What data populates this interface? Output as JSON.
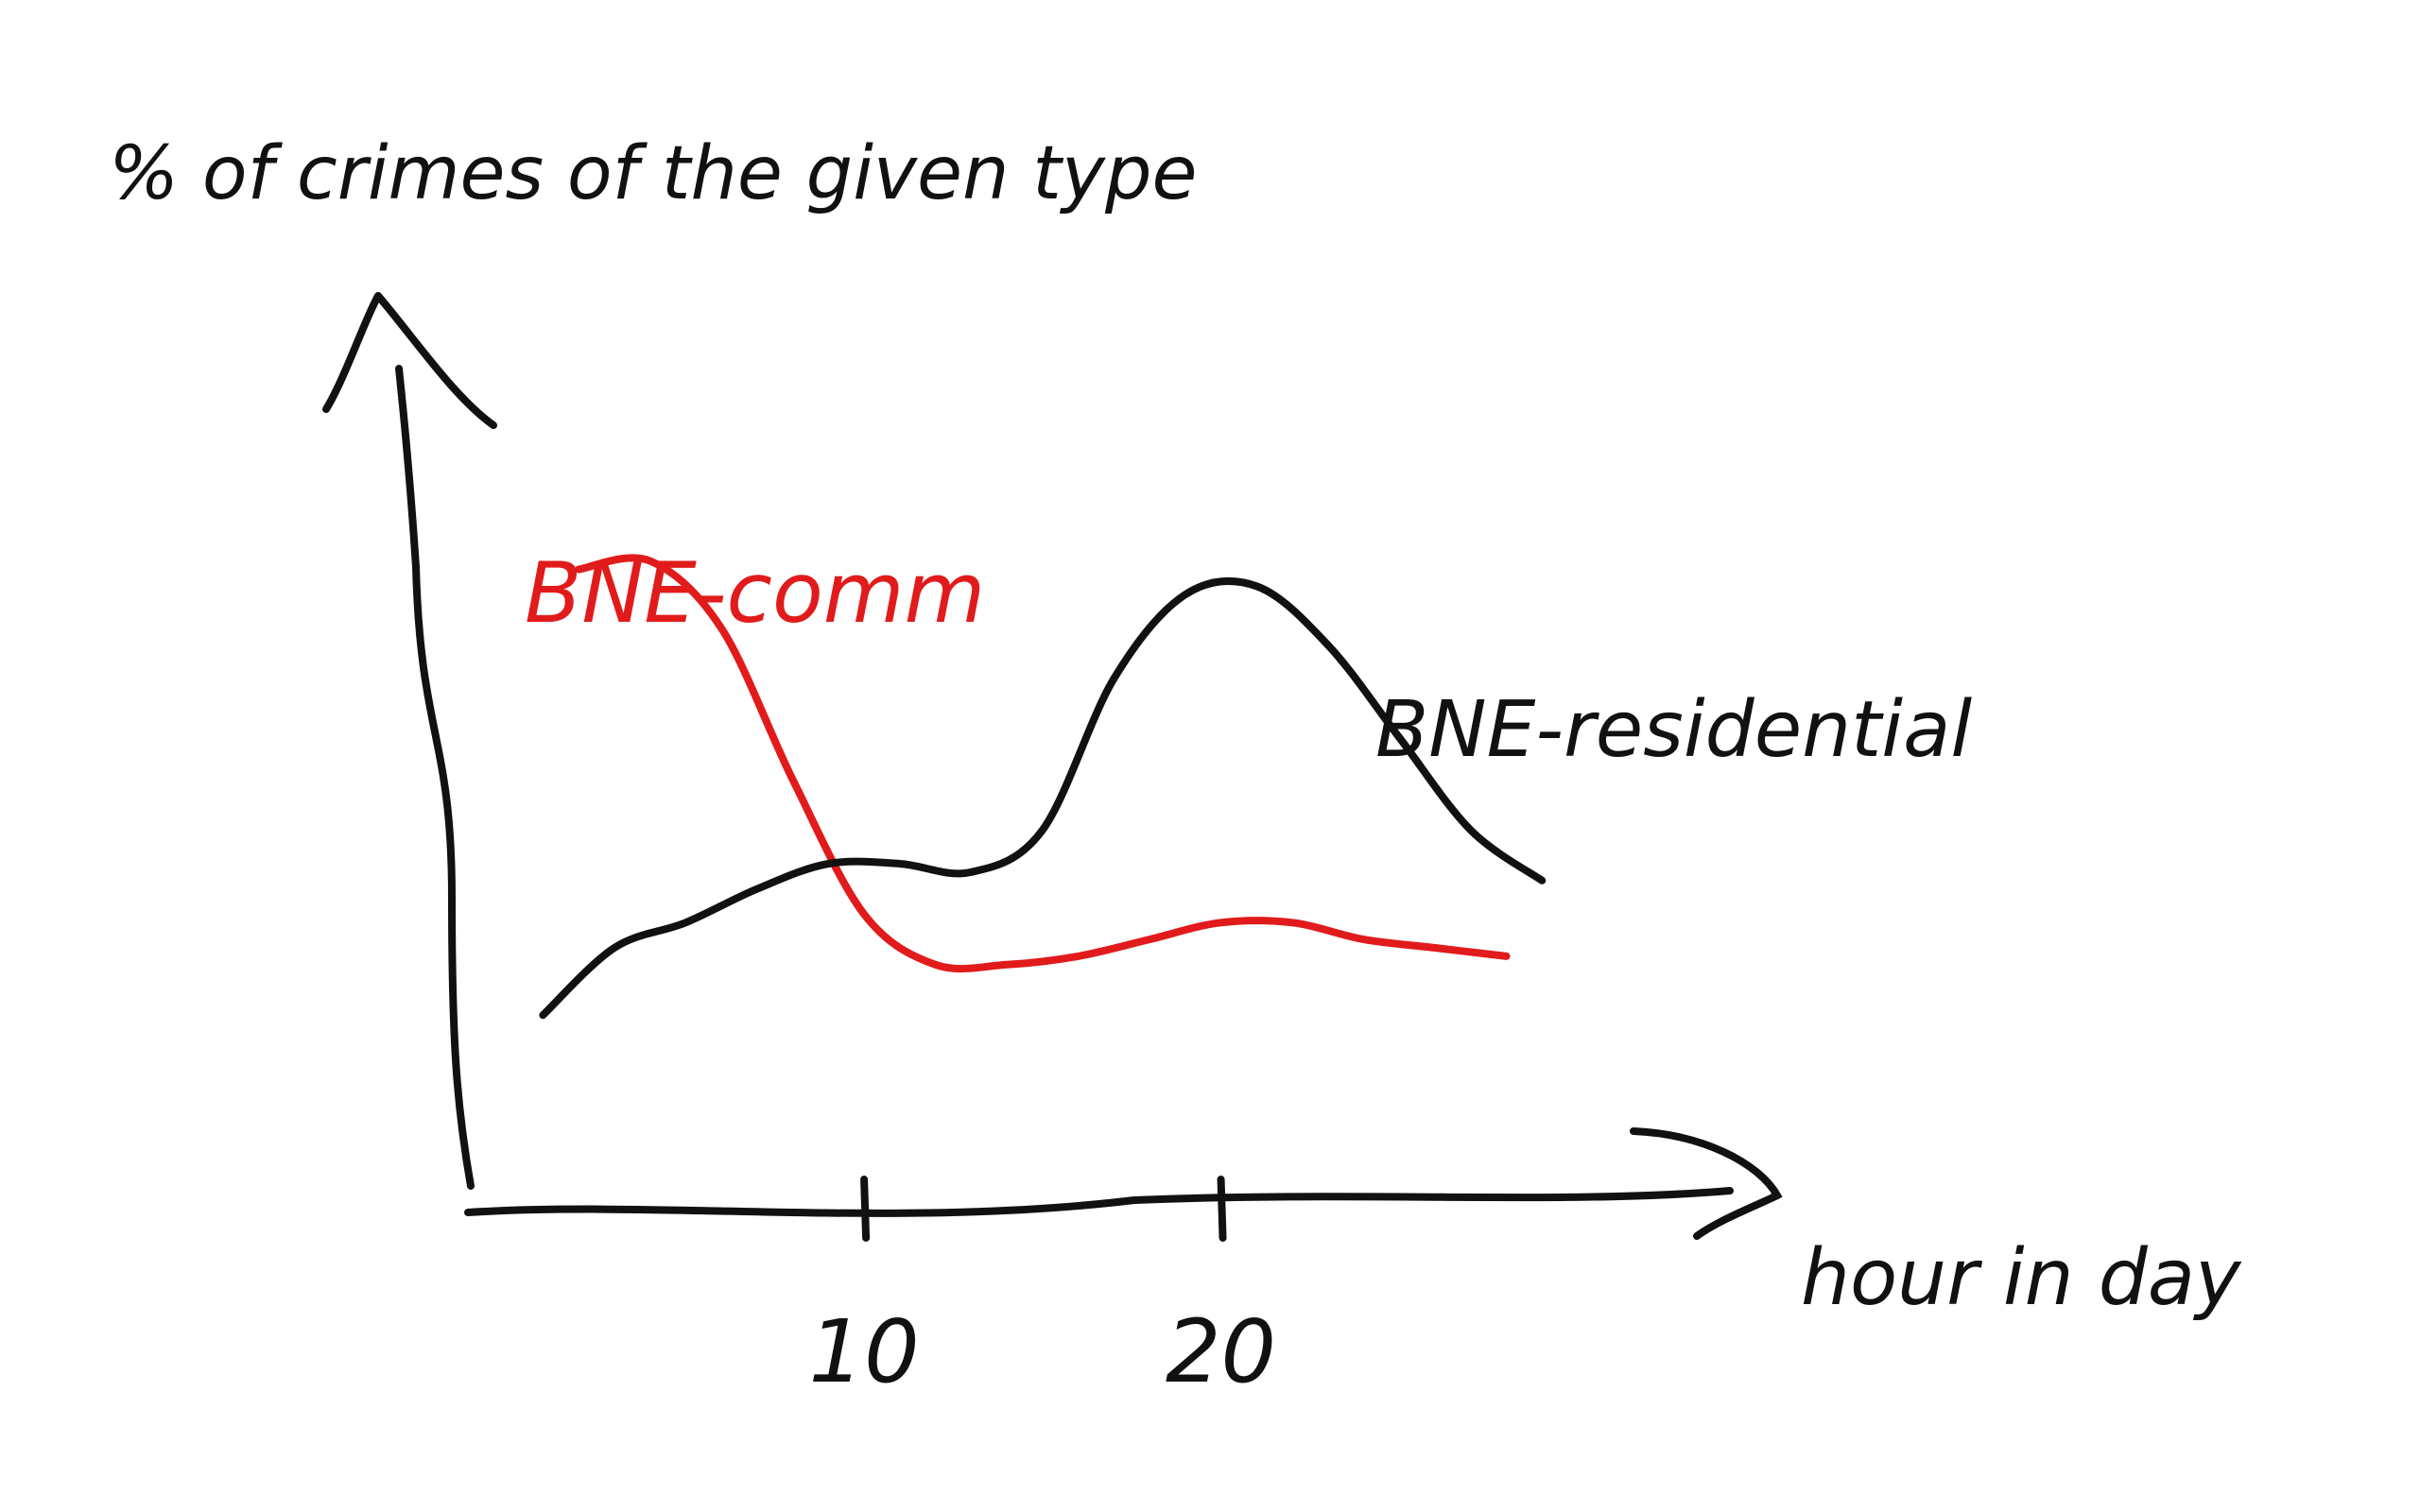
{
  "chart_data": {
    "type": "line",
    "ylabel": "% of crimes of the given type",
    "xlabel": "hour in day",
    "xticks": [
      "10",
      "20"
    ],
    "xlim": [
      -1.5,
      34
    ],
    "ylim": [
      0,
      100
    ],
    "grid": false,
    "legend": "inline labels",
    "series": [
      {
        "name": "BNE-comm",
        "color": "#e11b1b",
        "x": [
          2,
          4,
          6,
          8,
          10,
          12,
          14,
          16,
          18,
          20,
          22,
          24,
          26,
          28
        ],
        "y": [
          75,
          76,
          68,
          50,
          34,
          28,
          28,
          29,
          31,
          33,
          33,
          31,
          30,
          29
        ]
      },
      {
        "name": "BNE-residential",
        "color": "#111111",
        "x": [
          1,
          3,
          5,
          7,
          9,
          11,
          13,
          15,
          17,
          19,
          21,
          23,
          25,
          27,
          29
        ],
        "y": [
          22,
          30,
          33,
          37,
          40,
          40,
          39,
          44,
          62,
          72,
          73,
          66,
          55,
          44,
          38
        ]
      }
    ]
  }
}
